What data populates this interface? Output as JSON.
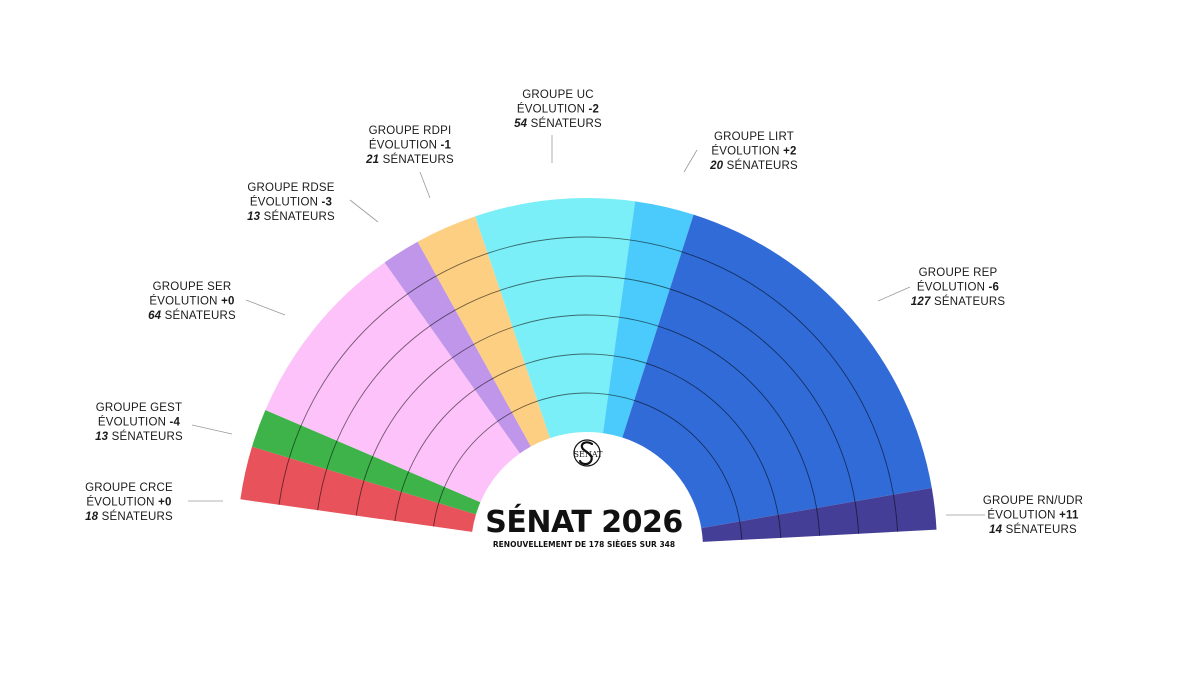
{
  "chart_data": {
    "type": "pie",
    "subtype": "parliament-hemicycle",
    "title": "SÉNAT 2026",
    "subtitle": "RENOUVELLEMENT DE 178 SIÈGES SUR 348",
    "logo_text": "SÉNAT",
    "total_seats": 348,
    "evolution_label": "ÉVOLUTION",
    "seats_unit": "SÉNATEURS",
    "series": [
      {
        "name": "GROUPE CRCE",
        "seats": 18,
        "evolution": "+0",
        "color": "#e8525a"
      },
      {
        "name": "GROUPE GEST",
        "seats": 13,
        "evolution": "-4",
        "color": "#3db34a"
      },
      {
        "name": "GROUPE SER",
        "seats": 64,
        "evolution": "+0",
        "color": "#fdc2f9"
      },
      {
        "name": "GROUPE RDSE",
        "seats": 13,
        "evolution": "-3",
        "color": "#bf96e9"
      },
      {
        "name": "GROUPE RDPI",
        "seats": 21,
        "evolution": "-1",
        "color": "#fdcf82"
      },
      {
        "name": "GROUPE UC",
        "seats": 54,
        "evolution": "-2",
        "color": "#7beff7"
      },
      {
        "name": "GROUPE LIRT",
        "seats": 20,
        "evolution": "+2",
        "color": "#4bcbfb"
      },
      {
        "name": "GROUPE REP",
        "seats": 127,
        "evolution": "-6",
        "color": "#306bd8"
      },
      {
        "name": "GROUPE RN/UDR",
        "seats": 14,
        "evolution": "+11",
        "color": "#443e96"
      }
    ]
  }
}
